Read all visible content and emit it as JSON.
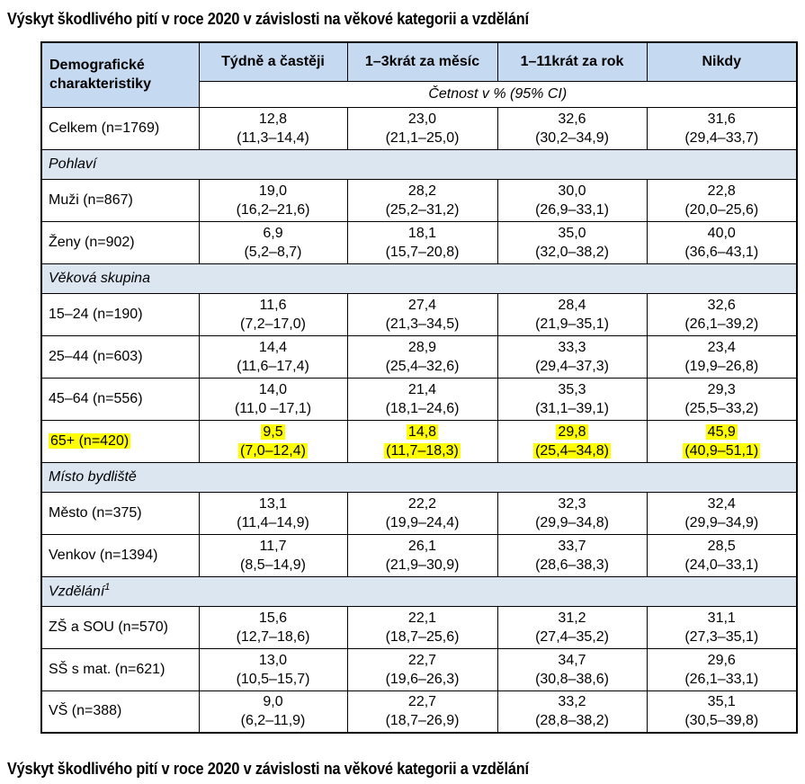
{
  "title": "Výskyt škodlivého pití v roce 2020 v závislosti na věkové kategorii a vzdělání",
  "caption": "Výskyt škodlivého pití v roce 2020 v závislosti na věkové kategorii a vzdělání",
  "colors": {
    "header_bg": "#c5d9f1",
    "section_bg": "#dce6f1",
    "highlight": "#ffff00",
    "border": "#000000"
  },
  "table": {
    "header": {
      "col0": "Demografické charakteristiky",
      "columns": [
        "Týdně a častěji",
        "1–3krát za měsíc",
        "1–11krát za rok",
        "Nikdy"
      ],
      "subheader": "Četnost v % (95% CI)"
    },
    "rows": [
      {
        "type": "data",
        "label": "Celkem (n=1769)",
        "cells": [
          [
            "12,8",
            "(11,3–14,4)"
          ],
          [
            "23,0",
            "(21,1–25,0)"
          ],
          [
            "32,6",
            "(30,2–34,9)"
          ],
          [
            "31,6",
            "(29,4–33,7)"
          ]
        ]
      },
      {
        "type": "section",
        "label": "Pohlaví"
      },
      {
        "type": "data",
        "label": "Muži (n=867)",
        "cells": [
          [
            "19,0",
            "(16,2–21,6)"
          ],
          [
            "28,2",
            "(25,2–31,2)"
          ],
          [
            "30,0",
            "(26,9–33,1)"
          ],
          [
            "22,8",
            "(20,0–25,6)"
          ]
        ]
      },
      {
        "type": "data",
        "label": "Ženy (n=902)",
        "cells": [
          [
            "6,9",
            "(5,2–8,7)"
          ],
          [
            "18,1",
            "(15,7–20,8)"
          ],
          [
            "35,0",
            "(32,0–38,2)"
          ],
          [
            "40,0",
            "(36,6–43,1)"
          ]
        ]
      },
      {
        "type": "section",
        "label": "Věková skupina"
      },
      {
        "type": "data",
        "label": "15–24 (n=190)",
        "cells": [
          [
            "11,6",
            "(7,2–17,0)"
          ],
          [
            "27,4",
            "(21,3–34,5)"
          ],
          [
            "28,4",
            "(21,9–35,1)"
          ],
          [
            "32,6",
            "(26,1–39,2)"
          ]
        ]
      },
      {
        "type": "data",
        "label": "25–44 (n=603)",
        "cells": [
          [
            "14,4",
            "(11,6–17,4)"
          ],
          [
            "28,9",
            "(25,4–32,6)"
          ],
          [
            "33,3",
            "(29,4–37,3)"
          ],
          [
            "23,4",
            "(19,9–26,8)"
          ]
        ]
      },
      {
        "type": "data",
        "label": "45–64 (n=556)",
        "cells": [
          [
            "14,0",
            "(11,0 –17,1)"
          ],
          [
            "21,4",
            "(18,1–24,6)"
          ],
          [
            "35,3",
            "(31,1–39,1)"
          ],
          [
            "29,3",
            "(25,5–33,2)"
          ]
        ]
      },
      {
        "type": "data",
        "label": "65+ (n=420)",
        "highlight": true,
        "cells": [
          [
            "9,5",
            "(7,0–12,4)"
          ],
          [
            "14,8",
            "(11,7–18,3)"
          ],
          [
            "29,8",
            "(25,4–34,8)"
          ],
          [
            "45,9",
            "(40,9–51,1)"
          ]
        ]
      },
      {
        "type": "section",
        "label": "Místo bydliště"
      },
      {
        "type": "data",
        "label": "Město (n=375)",
        "cells": [
          [
            "13,1",
            "(11,4–14,9)"
          ],
          [
            "22,2",
            "(19,9–24,4)"
          ],
          [
            "32,3",
            "(29,9–34,8)"
          ],
          [
            "32,4",
            "(29,9–34,9)"
          ]
        ]
      },
      {
        "type": "data",
        "label": "Venkov (n=1394)",
        "cells": [
          [
            "11,7",
            "(8,5–14,9)"
          ],
          [
            "26,1",
            "(21,9–30,9)"
          ],
          [
            "33,7",
            "(28,6–38,3)"
          ],
          [
            "28,5",
            "(24,0–33,1)"
          ]
        ]
      },
      {
        "type": "section",
        "label": "Vzdělání",
        "sup": "1"
      },
      {
        "type": "data",
        "label": "ZŠ a SOU (n=570)",
        "cells": [
          [
            "15,6",
            "(12,7–18,6)"
          ],
          [
            "22,1",
            "(18,7–25,6)"
          ],
          [
            "31,2",
            "(27,4–35,2)"
          ],
          [
            "31,1",
            "(27,3–35,1)"
          ]
        ]
      },
      {
        "type": "data",
        "label": "SŠ s mat. (n=621)",
        "cells": [
          [
            "13,0",
            "(10,5–15,7)"
          ],
          [
            "22,7",
            "(19,6–26,3)"
          ],
          [
            "34,7",
            "(30,8–38,6)"
          ],
          [
            "29,6",
            "(26,1–33,1)"
          ]
        ]
      },
      {
        "type": "data",
        "label": "VŠ (n=388)",
        "cells": [
          [
            "9,0",
            "(6,2–11,9)"
          ],
          [
            "22,7",
            "(18,7–26,9)"
          ],
          [
            "33,2",
            "(28,8–38,2)"
          ],
          [
            "35,1",
            "(30,5–39,8)"
          ]
        ]
      }
    ]
  }
}
